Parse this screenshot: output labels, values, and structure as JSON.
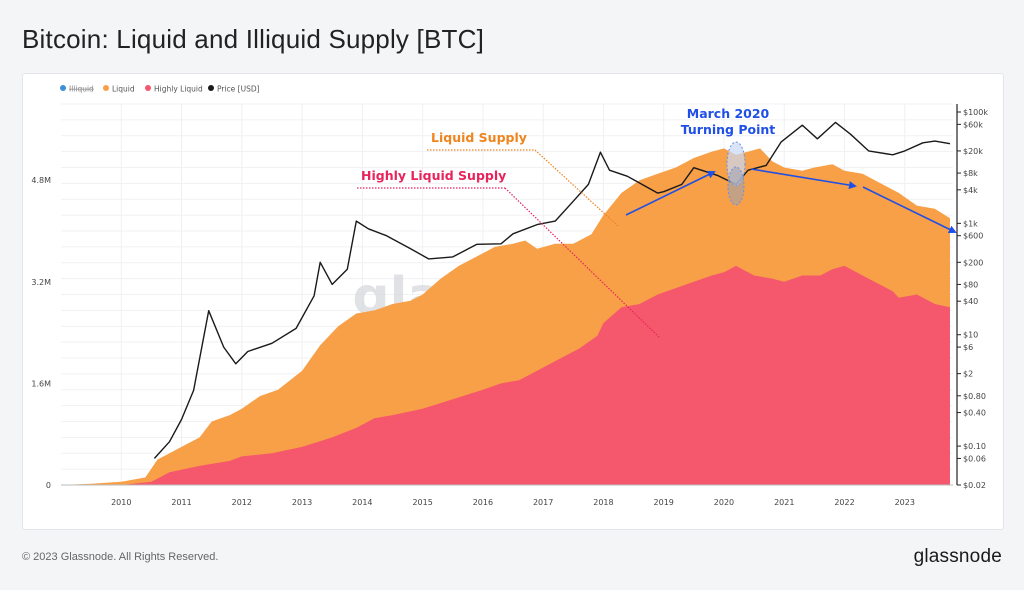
{
  "page": {
    "title": "Bitcoin: Liquid and Illiquid Supply [BTC]",
    "copyright": "© 2023 Glassnode. All Rights Reserved.",
    "brand": "glassnode",
    "watermark": "glassnode"
  },
  "colors": {
    "illiquid": "#3b8fd6",
    "liquid": "#f7a048",
    "highly_liquid": "#f5576c",
    "price": "#1a1a1a",
    "annotation_liquid": "#f0841e",
    "annotation_highly": "#e8245c",
    "annotation_blue": "#1f4fe6"
  },
  "annotations": {
    "liquid_supply": "Liquid Supply",
    "highly_liquid_supply": "Highly Liquid Supply",
    "march_line1": "March 2020",
    "march_line2": "Turning Point"
  },
  "chart_data": {
    "type": "area",
    "title": "Bitcoin: Liquid and Illiquid Supply [BTC]",
    "legend_position": "top-left",
    "legend": [
      {
        "name": "Illiquid",
        "color": "#3b8fd6",
        "hidden": true
      },
      {
        "name": "Liquid",
        "color": "#f7a048"
      },
      {
        "name": "Highly Liquid",
        "color": "#f5576c"
      },
      {
        "name": "Price [USD]",
        "color": "#1a1a1a"
      }
    ],
    "x_ticks": [
      "2010",
      "2011",
      "2012",
      "2013",
      "2014",
      "2015",
      "2016",
      "2017",
      "2018",
      "2019",
      "2020",
      "2021",
      "2022",
      "2023"
    ],
    "y_left": {
      "ticks": [
        0,
        1.6,
        3.2,
        4.8
      ],
      "labels": [
        "0",
        "1.6M",
        "3.2M",
        "4.8M"
      ],
      "unit": "M BTC",
      "range": [
        0,
        6
      ]
    },
    "y_right": {
      "scale": "log",
      "labels": [
        "$100k",
        "$60k",
        "$20k",
        "$8k",
        "$4k",
        "$1k",
        "$600",
        "$200",
        "$80",
        "$40",
        "$10",
        "$6",
        "$2",
        "$0.80",
        "$0.40",
        "$0.10",
        "$0.06",
        "$0.02"
      ],
      "values": [
        100000,
        60000,
        20000,
        8000,
        4000,
        1000,
        600,
        200,
        80,
        40,
        10,
        6,
        2,
        0.8,
        0.4,
        0.1,
        0.06,
        0.02
      ]
    },
    "grid": true,
    "series": [
      {
        "name": "Liquid",
        "unit": "M BTC",
        "points": [
          [
            2009.0,
            0.0
          ],
          [
            2009.5,
            0.02
          ],
          [
            2010.0,
            0.05
          ],
          [
            2010.4,
            0.12
          ],
          [
            2010.6,
            0.4
          ],
          [
            2010.8,
            0.5
          ],
          [
            2011.0,
            0.6
          ],
          [
            2011.3,
            0.75
          ],
          [
            2011.5,
            1.0
          ],
          [
            2011.8,
            1.1
          ],
          [
            2012.0,
            1.2
          ],
          [
            2012.3,
            1.4
          ],
          [
            2012.6,
            1.5
          ],
          [
            2013.0,
            1.8
          ],
          [
            2013.3,
            2.2
          ],
          [
            2013.6,
            2.5
          ],
          [
            2013.9,
            2.7
          ],
          [
            2014.2,
            2.75
          ],
          [
            2014.5,
            2.85
          ],
          [
            2014.8,
            2.9
          ],
          [
            2015.0,
            3.0
          ],
          [
            2015.3,
            3.25
          ],
          [
            2015.6,
            3.45
          ],
          [
            2015.9,
            3.6
          ],
          [
            2016.2,
            3.75
          ],
          [
            2016.5,
            3.8
          ],
          [
            2016.7,
            3.85
          ],
          [
            2016.9,
            3.72
          ],
          [
            2017.2,
            3.8
          ],
          [
            2017.5,
            3.8
          ],
          [
            2017.8,
            3.95
          ],
          [
            2018.0,
            4.25
          ],
          [
            2018.3,
            4.6
          ],
          [
            2018.6,
            4.8
          ],
          [
            2018.9,
            4.9
          ],
          [
            2019.2,
            5.0
          ],
          [
            2019.5,
            5.15
          ],
          [
            2019.8,
            5.25
          ],
          [
            2020.0,
            5.3
          ],
          [
            2020.2,
            5.2
          ],
          [
            2020.4,
            5.25
          ],
          [
            2020.6,
            5.3
          ],
          [
            2020.8,
            5.1
          ],
          [
            2021.0,
            5.0
          ],
          [
            2021.3,
            4.95
          ],
          [
            2021.5,
            5.0
          ],
          [
            2021.8,
            5.05
          ],
          [
            2022.0,
            4.95
          ],
          [
            2022.3,
            4.9
          ],
          [
            2022.6,
            4.75
          ],
          [
            2022.9,
            4.6
          ],
          [
            2023.2,
            4.4
          ],
          [
            2023.5,
            4.35
          ],
          [
            2023.75,
            4.2
          ]
        ]
      },
      {
        "name": "Highly Liquid",
        "unit": "M BTC",
        "points": [
          [
            2009.0,
            0.0
          ],
          [
            2010.0,
            0.0
          ],
          [
            2010.5,
            0.05
          ],
          [
            2010.8,
            0.2
          ],
          [
            2011.3,
            0.3
          ],
          [
            2011.8,
            0.38
          ],
          [
            2012.0,
            0.45
          ],
          [
            2012.5,
            0.5
          ],
          [
            2013.0,
            0.6
          ],
          [
            2013.5,
            0.75
          ],
          [
            2013.9,
            0.9
          ],
          [
            2014.2,
            1.05
          ],
          [
            2014.5,
            1.1
          ],
          [
            2015.0,
            1.2
          ],
          [
            2015.5,
            1.35
          ],
          [
            2016.0,
            1.5
          ],
          [
            2016.3,
            1.6
          ],
          [
            2016.6,
            1.65
          ],
          [
            2016.9,
            1.8
          ],
          [
            2017.3,
            2.0
          ],
          [
            2017.6,
            2.15
          ],
          [
            2017.9,
            2.35
          ],
          [
            2018.0,
            2.55
          ],
          [
            2018.3,
            2.8
          ],
          [
            2018.6,
            2.85
          ],
          [
            2018.9,
            3.0
          ],
          [
            2019.2,
            3.1
          ],
          [
            2019.5,
            3.2
          ],
          [
            2019.8,
            3.3
          ],
          [
            2020.0,
            3.35
          ],
          [
            2020.2,
            3.45
          ],
          [
            2020.5,
            3.3
          ],
          [
            2020.8,
            3.25
          ],
          [
            2021.0,
            3.2
          ],
          [
            2021.3,
            3.3
          ],
          [
            2021.6,
            3.3
          ],
          [
            2021.8,
            3.4
          ],
          [
            2022.0,
            3.45
          ],
          [
            2022.3,
            3.3
          ],
          [
            2022.6,
            3.15
          ],
          [
            2022.8,
            3.05
          ],
          [
            2022.9,
            2.95
          ],
          [
            2023.2,
            3.0
          ],
          [
            2023.5,
            2.85
          ],
          [
            2023.75,
            2.8
          ]
        ]
      },
      {
        "name": "Price [USD]",
        "unit": "USD",
        "points": [
          [
            2010.55,
            0.06
          ],
          [
            2010.8,
            0.12
          ],
          [
            2011.0,
            0.3
          ],
          [
            2011.2,
            1.0
          ],
          [
            2011.45,
            27
          ],
          [
            2011.7,
            6
          ],
          [
            2011.9,
            3
          ],
          [
            2012.1,
            5
          ],
          [
            2012.5,
            7
          ],
          [
            2012.9,
            13
          ],
          [
            2013.2,
            50
          ],
          [
            2013.3,
            200
          ],
          [
            2013.5,
            80
          ],
          [
            2013.75,
            150
          ],
          [
            2013.9,
            1100
          ],
          [
            2014.1,
            800
          ],
          [
            2014.4,
            600
          ],
          [
            2014.8,
            350
          ],
          [
            2015.1,
            230
          ],
          [
            2015.5,
            250
          ],
          [
            2015.9,
            420
          ],
          [
            2016.3,
            430
          ],
          [
            2016.5,
            650
          ],
          [
            2016.9,
            950
          ],
          [
            2017.2,
            1100
          ],
          [
            2017.5,
            2500
          ],
          [
            2017.75,
            5000
          ],
          [
            2017.95,
            19000
          ],
          [
            2018.1,
            9000
          ],
          [
            2018.4,
            7000
          ],
          [
            2018.9,
            3500
          ],
          [
            2019.0,
            3700
          ],
          [
            2019.3,
            5000
          ],
          [
            2019.5,
            10000
          ],
          [
            2019.9,
            7200
          ],
          [
            2020.2,
            5000
          ],
          [
            2020.4,
            9000
          ],
          [
            2020.7,
            11000
          ],
          [
            2020.95,
            29000
          ],
          [
            2021.3,
            58000
          ],
          [
            2021.55,
            33000
          ],
          [
            2021.85,
            65000
          ],
          [
            2022.1,
            40000
          ],
          [
            2022.4,
            20000
          ],
          [
            2022.8,
            17000
          ],
          [
            2023.0,
            20000
          ],
          [
            2023.3,
            28000
          ],
          [
            2023.5,
            30000
          ],
          [
            2023.75,
            27000
          ]
        ]
      }
    ]
  }
}
